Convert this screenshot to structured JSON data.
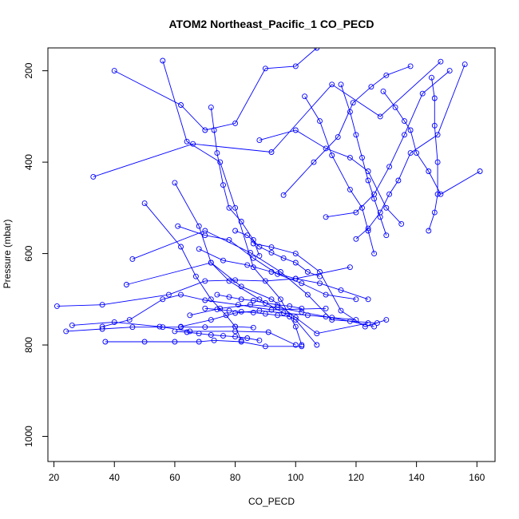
{
  "chart_data": {
    "type": "line",
    "title": "ATOM2 Northeast_Pacific_1 CO_PECD",
    "xlabel": "CO_PECD",
    "ylabel": "Pressure (mbar)",
    "xlim": [
      18,
      166
    ],
    "ylim": [
      1055,
      150
    ],
    "y_reversed": true,
    "x_ticks": [
      20,
      40,
      60,
      80,
      100,
      120,
      140,
      160
    ],
    "y_ticks": [
      200,
      400,
      600,
      800,
      1000
    ],
    "grid": false,
    "marker": "open-circle",
    "color": "#0000ff",
    "series": [
      {
        "values": [
          [
            40,
            200
          ],
          [
            62,
            275
          ],
          [
            70,
            330
          ],
          [
            80,
            315
          ],
          [
            90,
            195
          ],
          [
            100,
            190
          ],
          [
            107,
            150
          ]
        ]
      },
      {
        "values": [
          [
            56,
            178
          ],
          [
            64,
            355
          ],
          [
            75,
            400
          ],
          [
            80,
            500
          ],
          [
            86,
            630
          ],
          [
            95,
            700
          ],
          [
            100,
            760
          ],
          [
            102,
            800
          ]
        ]
      },
      {
        "values": [
          [
            33,
            432
          ],
          [
            66,
            360
          ],
          [
            92,
            378
          ],
          [
            112,
            230
          ],
          [
            128,
            300
          ],
          [
            148,
            180
          ]
        ]
      },
      {
        "values": [
          [
            60,
            445
          ],
          [
            68,
            540
          ],
          [
            72,
            620
          ],
          [
            78,
            660
          ],
          [
            88,
            700
          ],
          [
            100,
            745
          ],
          [
            107,
            800
          ]
        ]
      },
      {
        "values": [
          [
            50,
            490
          ],
          [
            62,
            585
          ],
          [
            67,
            650
          ],
          [
            72,
            700
          ],
          [
            77,
            735
          ],
          [
            80,
            760
          ],
          [
            82,
            790
          ]
        ]
      },
      {
        "values": [
          [
            46,
            612
          ],
          [
            70,
            550
          ],
          [
            85,
            598
          ],
          [
            95,
            640
          ],
          [
            104,
            690
          ],
          [
            112,
            745
          ],
          [
            127,
            752
          ]
        ]
      },
      {
        "values": [
          [
            44,
            668
          ],
          [
            72,
            620
          ],
          [
            82,
            672
          ],
          [
            92,
            700
          ],
          [
            100,
            740
          ],
          [
            107,
            775
          ],
          [
            124,
            752
          ]
        ]
      },
      {
        "values": [
          [
            36,
            760
          ],
          [
            45,
            745
          ],
          [
            56,
            700
          ],
          [
            62,
            690
          ],
          [
            70,
            702
          ],
          [
            81,
            712
          ],
          [
            92,
            723
          ],
          [
            110,
            720
          ]
        ]
      },
      {
        "values": [
          [
            24,
            770
          ],
          [
            36,
            765
          ],
          [
            46,
            761
          ],
          [
            56,
            761
          ],
          [
            62,
            761
          ],
          [
            70,
            761
          ],
          [
            80,
            760
          ],
          [
            86,
            762
          ]
        ]
      },
      {
        "values": [
          [
            21,
            715
          ],
          [
            36,
            712
          ],
          [
            58,
            690
          ],
          [
            70,
            660
          ],
          [
            80,
            658
          ],
          [
            90,
            660
          ],
          [
            100,
            655
          ],
          [
            118,
            630
          ]
        ]
      },
      {
        "values": [
          [
            26,
            757
          ],
          [
            40,
            750
          ],
          [
            55,
            760
          ],
          [
            65,
            770
          ],
          [
            80,
            770
          ],
          [
            91,
            772
          ],
          [
            100,
            800
          ]
        ]
      },
      {
        "values": [
          [
            37,
            793
          ],
          [
            50,
            793
          ],
          [
            60,
            793
          ],
          [
            68,
            793
          ],
          [
            73,
            790
          ],
          [
            82,
            793
          ],
          [
            90,
            803
          ],
          [
            102,
            803
          ]
        ]
      },
      {
        "values": [
          [
            86,
            578
          ],
          [
            92,
            586
          ],
          [
            100,
            600
          ],
          [
            108,
            640
          ],
          [
            115,
            725
          ],
          [
            123,
            760
          ],
          [
            130,
            745
          ]
        ]
      },
      {
        "values": [
          [
            88,
            352
          ],
          [
            100,
            330
          ],
          [
            110,
            370
          ],
          [
            118,
            390
          ],
          [
            124,
            420
          ],
          [
            130,
            500
          ],
          [
            135,
            535
          ]
        ]
      },
      {
        "values": [
          [
            96,
            472
          ],
          [
            106,
            400
          ],
          [
            114,
            345
          ],
          [
            119,
            270
          ],
          [
            125,
            235
          ],
          [
            130,
            210
          ],
          [
            138,
            190
          ]
        ]
      },
      {
        "values": [
          [
            103,
            256
          ],
          [
            108,
            310
          ],
          [
            112,
            385
          ],
          [
            118,
            460
          ],
          [
            122,
            500
          ],
          [
            124,
            550
          ],
          [
            126,
            600
          ]
        ]
      },
      {
        "values": [
          [
            110,
            520
          ],
          [
            120,
            510
          ],
          [
            126,
            470
          ],
          [
            131,
            410
          ],
          [
            136,
            340
          ],
          [
            142,
            250
          ],
          [
            151,
            200
          ]
        ]
      },
      {
        "values": [
          [
            120,
            568
          ],
          [
            124,
            545
          ],
          [
            128,
            510
          ],
          [
            131,
            470
          ],
          [
            134,
            440
          ],
          [
            138,
            380
          ],
          [
            147,
            340
          ],
          [
            156,
            186
          ]
        ]
      },
      {
        "values": [
          [
            61,
            540
          ],
          [
            70,
            560
          ],
          [
            78,
            570
          ],
          [
            86,
            610
          ],
          [
            94,
            645
          ],
          [
            102,
            665
          ],
          [
            110,
            690
          ],
          [
            120,
            700
          ]
        ]
      },
      {
        "values": [
          [
            68,
            590
          ],
          [
            76,
            615
          ],
          [
            84,
            625
          ],
          [
            92,
            640
          ],
          [
            100,
            655
          ],
          [
            108,
            665
          ],
          [
            115,
            680
          ],
          [
            124,
            700
          ]
        ]
      },
      {
        "values": [
          [
            62,
            760
          ],
          [
            72,
            745
          ],
          [
            80,
            730
          ],
          [
            88,
            725
          ],
          [
            96,
            730
          ],
          [
            104,
            735
          ],
          [
            112,
            740
          ],
          [
            120,
            745
          ]
        ]
      },
      {
        "values": [
          [
            65,
            735
          ],
          [
            75,
            720
          ],
          [
            85,
            712
          ],
          [
            94,
            718
          ],
          [
            102,
            728
          ],
          [
            110,
            738
          ],
          [
            118,
            748
          ],
          [
            126,
            760
          ]
        ]
      },
      {
        "values": [
          [
            72,
            280
          ],
          [
            73,
            330
          ],
          [
            74,
            380
          ],
          [
            76,
            450
          ],
          [
            78,
            500
          ],
          [
            82,
            530
          ],
          [
            86,
            570
          ],
          [
            88,
            605
          ]
        ]
      },
      {
        "values": [
          [
            115,
            230
          ],
          [
            118,
            290
          ],
          [
            120,
            340
          ],
          [
            122,
            390
          ],
          [
            124,
            440
          ],
          [
            126,
            480
          ],
          [
            128,
            520
          ],
          [
            130,
            560
          ]
        ]
      },
      {
        "values": [
          [
            145,
            215
          ],
          [
            146,
            260
          ],
          [
            146,
            320
          ],
          [
            147,
            400
          ],
          [
            147,
            470
          ],
          [
            146,
            510
          ],
          [
            144,
            550
          ]
        ]
      },
      {
        "values": [
          [
            129,
            245
          ],
          [
            133,
            280
          ],
          [
            136,
            310
          ],
          [
            138,
            330
          ],
          [
            140,
            380
          ],
          [
            144,
            420
          ],
          [
            148,
            470
          ],
          [
            161,
            420
          ]
        ]
      },
      {
        "values": [
          [
            80,
            550
          ],
          [
            84,
            560
          ],
          [
            88,
            585
          ],
          [
            92,
            598
          ],
          [
            96,
            610
          ],
          [
            100,
            620
          ],
          [
            104,
            640
          ],
          [
            108,
            650
          ]
        ]
      },
      {
        "values": [
          [
            74,
            690
          ],
          [
            78,
            695
          ],
          [
            82,
            700
          ],
          [
            86,
            703
          ],
          [
            90,
            708
          ],
          [
            94,
            712
          ],
          [
            98,
            715
          ],
          [
            102,
            720
          ]
        ]
      },
      {
        "values": [
          [
            70,
            720
          ],
          [
            74,
            722
          ],
          [
            78,
            725
          ],
          [
            82,
            727
          ],
          [
            86,
            729
          ],
          [
            90,
            732
          ],
          [
            94,
            735
          ],
          [
            98,
            738
          ]
        ]
      },
      {
        "values": [
          [
            60,
            770
          ],
          [
            64,
            772
          ],
          [
            68,
            775
          ],
          [
            72,
            778
          ],
          [
            76,
            780
          ],
          [
            80,
            782
          ],
          [
            84,
            785
          ],
          [
            88,
            790
          ]
        ]
      }
    ]
  }
}
